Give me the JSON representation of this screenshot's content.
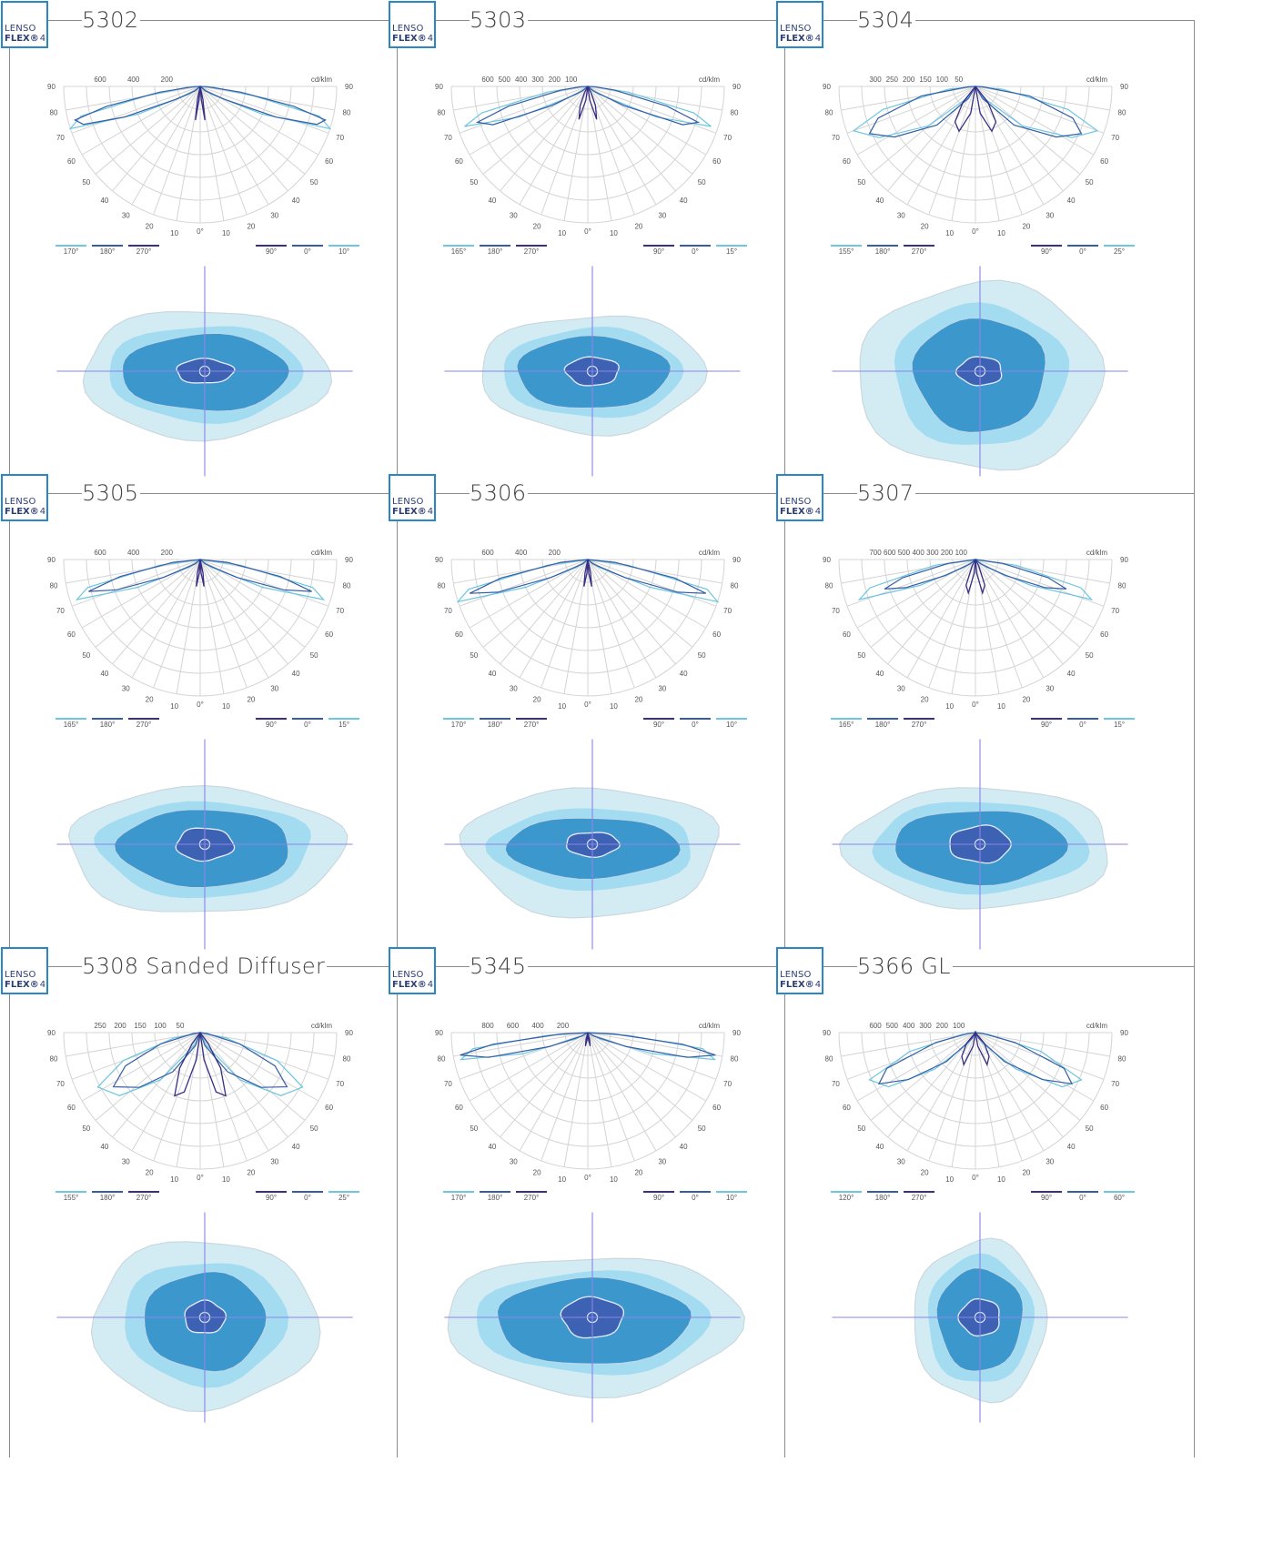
{
  "colors": {
    "frame": "#8c8c8c",
    "brand": "#2b86c6",
    "grid": "#d4d4d4",
    "curve_c0": "#355da6",
    "curve_c90": "#372e85",
    "curve_side": "#6cc6df",
    "iso_outer": "#d3ecf4",
    "iso_mid": "#a3dbf0",
    "iso_inner": "#3c97cc",
    "iso_core": "#3d62b4",
    "axis_line": "#8a86e8"
  },
  "logo": {
    "line1": "LENSO",
    "line2": "FLEX",
    "reg": "®",
    "version": "4"
  },
  "panels": [
    {
      "code": "5302",
      "chart_data": {
        "type": "polar",
        "unit": "cd/klm",
        "radial_ticks": [
          "600",
          "400",
          "200"
        ],
        "planes": [
          "170°",
          "180°",
          "270°",
          "90°",
          "0°",
          "10°"
        ],
        "angle_labels": [
          "90",
          "80",
          "70",
          "60",
          "50",
          "40",
          "30",
          "20",
          "10",
          "0°"
        ]
      }
    },
    {
      "code": "5303",
      "chart_data": {
        "type": "polar",
        "unit": "cd/klm",
        "radial_ticks": [
          "600",
          "500",
          "400",
          "300",
          "200",
          "100"
        ],
        "planes": [
          "165°",
          "180°",
          "270°",
          "90°",
          "0°",
          "15°"
        ],
        "angle_labels": [
          "90",
          "80",
          "70",
          "60",
          "50",
          "40",
          "30",
          "20",
          "10",
          "0°"
        ]
      }
    },
    {
      "code": "5304",
      "chart_data": {
        "type": "polar",
        "unit": "cd/klm",
        "radial_ticks": [
          "300",
          "250",
          "200",
          "150",
          "100",
          "50"
        ],
        "planes": [
          "155°",
          "180°",
          "270°",
          "90°",
          "0°",
          "25°"
        ],
        "angle_labels": [
          "90",
          "80",
          "70",
          "60",
          "50",
          "40",
          "30",
          "20",
          "10",
          "0°"
        ]
      }
    },
    {
      "code": "5305",
      "chart_data": {
        "type": "polar",
        "unit": "cd/klm",
        "radial_ticks": [
          "600",
          "400",
          "200"
        ],
        "planes": [
          "165°",
          "180°",
          "270°",
          "90°",
          "0°",
          "15°"
        ],
        "angle_labels": [
          "90",
          "80",
          "70",
          "60",
          "50",
          "40",
          "30",
          "20",
          "10",
          "0°"
        ]
      }
    },
    {
      "code": "5306",
      "chart_data": {
        "type": "polar",
        "unit": "cd/klm",
        "radial_ticks": [
          "600",
          "400",
          "200"
        ],
        "planes": [
          "170°",
          "180°",
          "270°",
          "90°",
          "0°",
          "10°"
        ],
        "angle_labels": [
          "90",
          "80",
          "70",
          "60",
          "50",
          "40",
          "30",
          "20",
          "10",
          "0°"
        ]
      }
    },
    {
      "code": "5307",
      "chart_data": {
        "type": "polar",
        "unit": "cd/klm",
        "radial_ticks": [
          "700",
          "600",
          "500",
          "400",
          "300",
          "200",
          "100"
        ],
        "planes": [
          "165°",
          "180°",
          "270°",
          "90°",
          "0°",
          "15°"
        ],
        "angle_labels": [
          "90",
          "80",
          "70",
          "60",
          "50",
          "40",
          "30",
          "20",
          "10",
          "0°"
        ]
      }
    },
    {
      "code": "5308 Sanded Diffuser",
      "chart_data": {
        "type": "polar",
        "unit": "cd/klm",
        "radial_ticks": [
          "250",
          "200",
          "150",
          "100",
          "50"
        ],
        "planes": [
          "155°",
          "180°",
          "270°",
          "90°",
          "0°",
          "25°"
        ],
        "angle_labels": [
          "90",
          "80",
          "70",
          "60",
          "50",
          "40",
          "30",
          "20",
          "10",
          "0°"
        ]
      }
    },
    {
      "code": "5345",
      "chart_data": {
        "type": "polar",
        "unit": "cd/klm",
        "radial_ticks": [
          "800",
          "600",
          "400",
          "200"
        ],
        "planes": [
          "170°",
          "180°",
          "270°",
          "90°",
          "0°",
          "10°"
        ],
        "angle_labels": [
          "90",
          "80",
          "70",
          "60",
          "50",
          "40",
          "30",
          "20",
          "10",
          "0°"
        ]
      }
    },
    {
      "code": "5366 GL",
      "chart_data": {
        "type": "polar",
        "unit": "cd/klm",
        "radial_ticks": [
          "600",
          "500",
          "400",
          "300",
          "200",
          "100"
        ],
        "planes": [
          "120°",
          "180°",
          "270°",
          "90°",
          "0°",
          "60°"
        ],
        "angle_labels": [
          "90",
          "80",
          "70",
          "60",
          "50",
          "40",
          "30",
          "20",
          "10",
          "0°"
        ]
      }
    }
  ]
}
